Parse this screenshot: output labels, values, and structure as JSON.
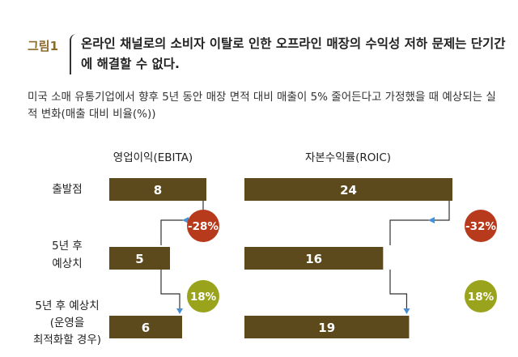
{
  "figure": {
    "label": "그림1",
    "title": "온라인 채널로의 소비자 이탈로 인한 오프라인 매장의 수익성 저하 문제는 단기간에 해결할 수 없다.",
    "subtitle": "미국 소매 유통기업에서 향후 5년 동안 매장 면적 대비 매출이 5% 줄어든다고 가정했을 때 예상되는 실적 변화(매출 대비 비율(%))"
  },
  "colors": {
    "bar": "#5c4a1c",
    "decrease_badge": "#b83a1c",
    "increase_badge": "#9aa31c",
    "connector": "#4a8fd0",
    "label": "#8b6a2c"
  },
  "chart_data": [
    {
      "type": "bar",
      "title": "영업이익(EBITA)",
      "categories": [
        "출발점",
        "5년 후|예상치",
        "5년 후 예상치|(운영을|최적화할 경우)"
      ],
      "values": [
        8,
        5,
        6
      ],
      "changes": [
        "-28%",
        "18%"
      ],
      "xlim": [
        0,
        8
      ]
    },
    {
      "type": "bar",
      "title": "자본수익률(ROIC)",
      "categories": [
        "출발점",
        "5년 후|예상치",
        "5년 후 예상치|(운영을|최적화할 경우)"
      ],
      "values": [
        24,
        16,
        19
      ],
      "changes": [
        "-32%",
        "18%"
      ],
      "xlim": [
        0,
        24
      ]
    }
  ]
}
